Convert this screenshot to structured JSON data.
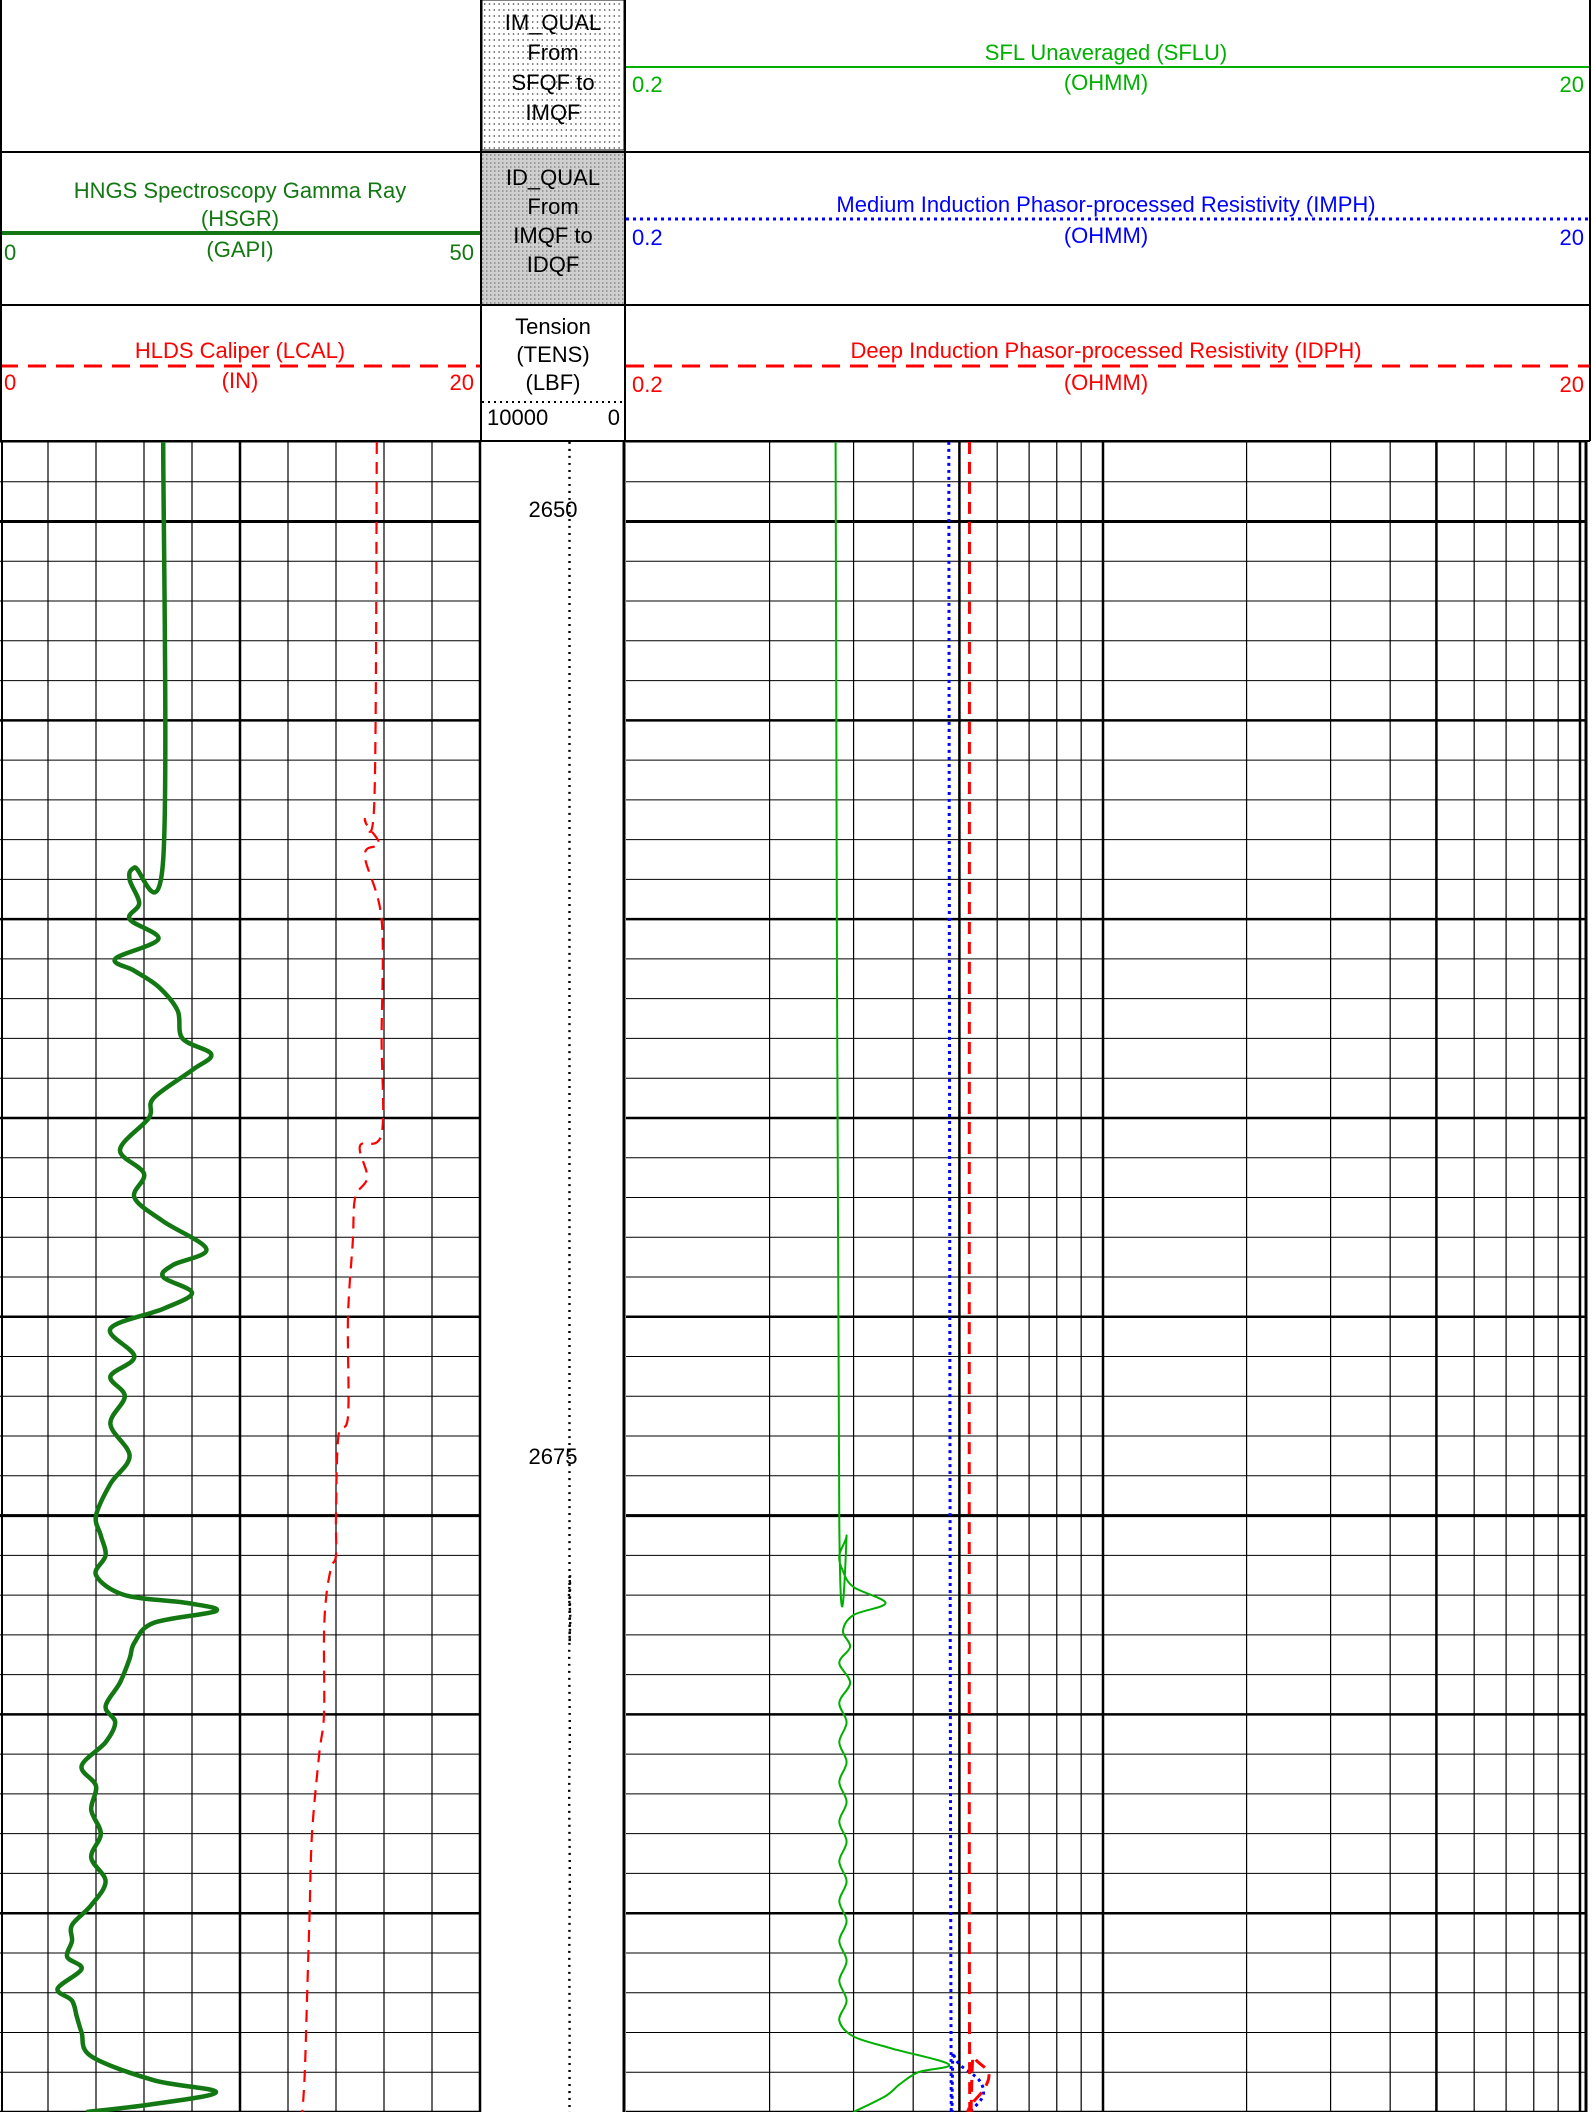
{
  "header": {
    "im_qual": {
      "lines": [
        "IM_QUAL",
        "From",
        "SFQF to",
        "IMQF"
      ]
    },
    "id_qual": {
      "lines": [
        "ID_QUAL",
        "From",
        "IMQF to",
        "IDQF"
      ]
    },
    "tension": {
      "lines": [
        "Tension",
        "(TENS)",
        "(LBF)"
      ],
      "scale_left": "10000",
      "scale_right": "0"
    },
    "hsgr": {
      "title": "HNGS Spectroscopy Gamma Ray",
      "mnemonic": "(HSGR)",
      "unit": "(GAPI)",
      "min": "0",
      "max": "50",
      "color": "#137813"
    },
    "lcal": {
      "title": "HLDS Caliper (LCAL)",
      "unit": "(IN)",
      "min": "0",
      "max": "20",
      "color": "#ff0000"
    },
    "sflu": {
      "title": "SFL Unaveraged (SFLU)",
      "unit": "(OHMM)",
      "min": "0.2",
      "max": "20",
      "color": "#00b000"
    },
    "imph": {
      "title": "Medium Induction Phasor-processed Resistivity (IMPH)",
      "unit": "(OHMM)",
      "min": "0.2",
      "max": "20",
      "color": "#0000ff"
    },
    "idph": {
      "title": "Deep Induction Phasor-processed Resistivity (IDPH)",
      "unit": "(OHMM)",
      "min": "0.2",
      "max": "20",
      "color": "#ff0000"
    }
  },
  "depth_labels": [
    {
      "depth": 2650,
      "label": "2650"
    },
    {
      "depth": 2675,
      "label": "2675"
    }
  ],
  "chart_data": {
    "type": "line",
    "depth_range": [
      2648,
      2690
    ],
    "series": [
      {
        "name": "HSGR",
        "unit": "GAPI",
        "range": [
          0,
          50
        ],
        "color": "#137813",
        "points": [
          [
            2648,
            17
          ],
          [
            2658.5,
            17
          ],
          [
            2658.7,
            14
          ],
          [
            2659,
            13.5
          ],
          [
            2659.6,
            14.5
          ],
          [
            2660,
            13.5
          ],
          [
            2660.5,
            16.5
          ],
          [
            2661,
            12
          ],
          [
            2661.3,
            14
          ],
          [
            2661.7,
            16.5
          ],
          [
            2662.3,
            18.5
          ],
          [
            2663,
            19
          ],
          [
            2663.4,
            22
          ],
          [
            2663.8,
            20
          ],
          [
            2664.5,
            16
          ],
          [
            2665,
            15.5
          ],
          [
            2665.8,
            12.5
          ],
          [
            2666.4,
            15
          ],
          [
            2667,
            14
          ],
          [
            2667.6,
            17
          ],
          [
            2668.3,
            21.5
          ],
          [
            2668.7,
            18
          ],
          [
            2669,
            17
          ],
          [
            2669.4,
            20
          ],
          [
            2669.8,
            17
          ],
          [
            2670.3,
            11.5
          ],
          [
            2671,
            14
          ],
          [
            2671.5,
            11.5
          ],
          [
            2672,
            13
          ],
          [
            2672.7,
            11.5
          ],
          [
            2673.5,
            13.5
          ],
          [
            2674.2,
            11.5
          ],
          [
            2675,
            10
          ],
          [
            2675.5,
            10.5
          ],
          [
            2676,
            11
          ],
          [
            2676.5,
            10
          ],
          [
            2677,
            13
          ],
          [
            2677.2,
            19.5
          ],
          [
            2677.4,
            22.5
          ],
          [
            2677.7,
            16
          ],
          [
            2678.2,
            14
          ],
          [
            2678.6,
            13.5
          ],
          [
            2679.2,
            12.5
          ],
          [
            2679.8,
            11
          ],
          [
            2680.2,
            12
          ],
          [
            2680.7,
            11
          ],
          [
            2681.3,
            8.5
          ],
          [
            2681.8,
            10
          ],
          [
            2682.4,
            9.5
          ],
          [
            2683,
            10.5
          ],
          [
            2683.6,
            9.5
          ],
          [
            2684.2,
            11
          ],
          [
            2684.8,
            9.5
          ],
          [
            2685.3,
            7.5
          ],
          [
            2685.7,
            7.5
          ],
          [
            2686.1,
            7
          ],
          [
            2686.4,
            8.5
          ],
          [
            2686.9,
            6
          ],
          [
            2687.2,
            7.5
          ],
          [
            2687.6,
            8
          ],
          [
            2688,
            8.5
          ],
          [
            2688.6,
            9.5
          ],
          [
            2689.2,
            16
          ],
          [
            2689.5,
            22.5
          ],
          [
            2689.8,
            16
          ],
          [
            2690,
            9
          ]
        ]
      },
      {
        "name": "LCAL",
        "unit": "IN",
        "range": [
          0,
          20
        ],
        "color": "#ff0000",
        "points": [
          [
            2648,
            15.7
          ],
          [
            2657,
            15.6
          ],
          [
            2657.5,
            15.2
          ],
          [
            2658.1,
            15.8
          ],
          [
            2658.4,
            15.2
          ],
          [
            2660,
            15.9
          ],
          [
            2663,
            15.9
          ],
          [
            2665.4,
            15.9
          ],
          [
            2665.7,
            15
          ],
          [
            2666.5,
            15.3
          ],
          [
            2667,
            14.8
          ],
          [
            2668.1,
            14.7
          ],
          [
            2670,
            14.5
          ],
          [
            2672.5,
            14.5
          ],
          [
            2673,
            14.1
          ],
          [
            2675,
            14
          ],
          [
            2676,
            14
          ],
          [
            2676.3,
            13.8
          ],
          [
            2677,
            13.6
          ],
          [
            2678,
            13.5
          ],
          [
            2680,
            13.5
          ],
          [
            2681,
            13.3
          ],
          [
            2683,
            13
          ],
          [
            2685,
            12.9
          ],
          [
            2687,
            12.8
          ],
          [
            2689,
            12.7
          ],
          [
            2690,
            12.6
          ]
        ]
      },
      {
        "name": "SFLU",
        "unit": "OHMM",
        "range": [
          0.2,
          20
        ],
        "scale": "log",
        "color": "#00b000",
        "points": [
          [
            2648,
            0.55
          ],
          [
            2675.2,
            0.56
          ],
          [
            2675.5,
            0.58
          ],
          [
            2676,
            0.56
          ],
          [
            2676.4,
            0.57
          ],
          [
            2676.8,
            0.6
          ],
          [
            2677.2,
            0.7
          ],
          [
            2677.5,
            0.6
          ],
          [
            2677.9,
            0.57
          ],
          [
            2678.3,
            0.59
          ],
          [
            2678.7,
            0.56
          ],
          [
            2679.2,
            0.59
          ],
          [
            2679.7,
            0.56
          ],
          [
            2680.2,
            0.58
          ],
          [
            2680.7,
            0.56
          ],
          [
            2681.2,
            0.58
          ],
          [
            2681.7,
            0.56
          ],
          [
            2682.2,
            0.58
          ],
          [
            2682.7,
            0.56
          ],
          [
            2683.2,
            0.58
          ],
          [
            2683.7,
            0.56
          ],
          [
            2684.2,
            0.58
          ],
          [
            2684.7,
            0.56
          ],
          [
            2685.2,
            0.58
          ],
          [
            2685.7,
            0.56
          ],
          [
            2686.2,
            0.58
          ],
          [
            2686.7,
            0.56
          ],
          [
            2687.2,
            0.58
          ],
          [
            2687.7,
            0.56
          ],
          [
            2688.1,
            0.6
          ],
          [
            2688.4,
            0.72
          ],
          [
            2688.8,
            0.95
          ],
          [
            2689,
            0.82
          ],
          [
            2689.3,
            0.75
          ],
          [
            2689.6,
            0.7
          ],
          [
            2690,
            0.6
          ]
        ]
      },
      {
        "name": "IMPH",
        "unit": "OHMM",
        "range": [
          0.2,
          20
        ],
        "scale": "log",
        "color": "#0000ff",
        "points": [
          [
            2648,
            0.95
          ],
          [
            2688,
            0.96
          ],
          [
            2688.5,
            0.97
          ],
          [
            2688.8,
            1.0
          ],
          [
            2689.2,
            1.1
          ],
          [
            2689.6,
            1.12
          ],
          [
            2690,
            1.05
          ]
        ]
      },
      {
        "name": "IDPH",
        "unit": "OHMM",
        "range": [
          0.2,
          20
        ],
        "scale": "log",
        "color": "#ff0000",
        "points": [
          [
            2648,
            1.05
          ],
          [
            2688,
            1.05
          ],
          [
            2688.6,
            1.07
          ],
          [
            2689,
            1.15
          ],
          [
            2689.4,
            1.13
          ],
          [
            2689.8,
            1.06
          ],
          [
            2690,
            1.04
          ]
        ]
      },
      {
        "name": "TENS",
        "unit": "LBF",
        "range": [
          10000,
          0
        ],
        "color": "#000000",
        "points": [
          [
            2648,
            3840
          ],
          [
            2676,
            3840
          ],
          [
            2676.5,
            3800
          ],
          [
            2677,
            3870
          ],
          [
            2677.6,
            3780
          ],
          [
            2678.5,
            3860
          ],
          [
            2680.5,
            3820
          ],
          [
            2682,
            3860
          ],
          [
            2684,
            3820
          ],
          [
            2686,
            3850
          ],
          [
            2688,
            3830
          ],
          [
            2690,
            3840
          ]
        ]
      }
    ]
  }
}
